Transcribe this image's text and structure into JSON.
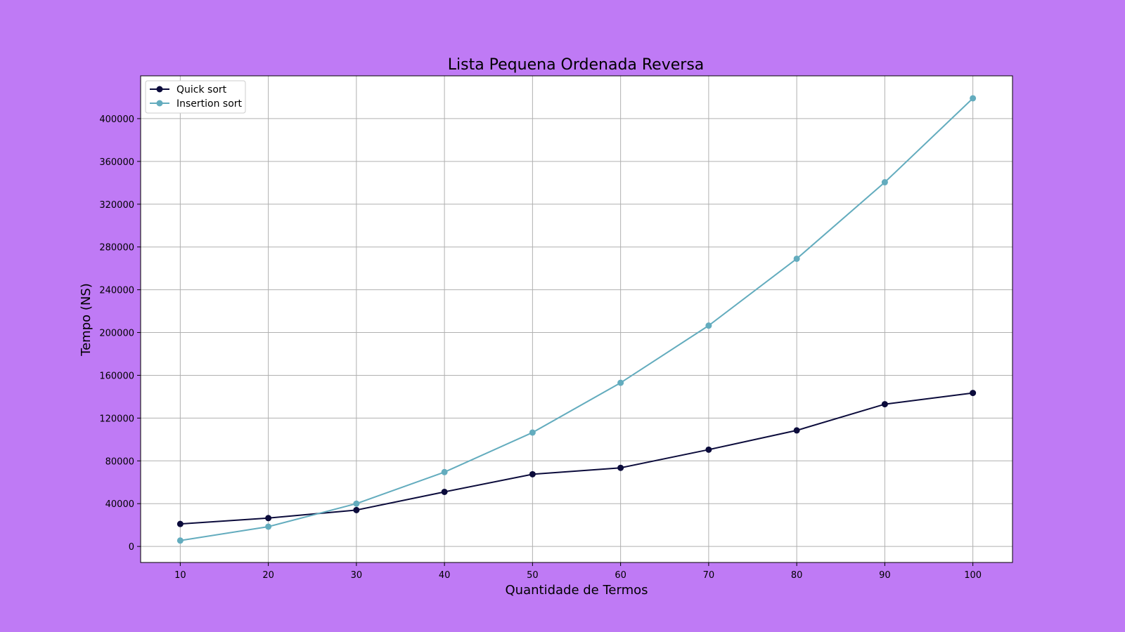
{
  "chart_data": {
    "type": "line",
    "title": "Lista Pequena Ordenada Reversa",
    "xlabel": "Quantidade de Termos",
    "ylabel": "Tempo (NS)",
    "x": [
      10,
      20,
      30,
      40,
      50,
      60,
      70,
      80,
      90,
      100
    ],
    "xlim": [
      5.5,
      104.5
    ],
    "ylim": [
      -15000,
      440000
    ],
    "xticks": [
      10,
      20,
      30,
      40,
      50,
      60,
      70,
      80,
      90,
      100
    ],
    "yticks": [
      0,
      40000,
      80000,
      120000,
      160000,
      200000,
      240000,
      280000,
      320000,
      360000,
      400000
    ],
    "grid": true,
    "legend_position": "top-left",
    "series": [
      {
        "name": "Quick sort",
        "color": "#0b0b3b",
        "values": [
          21000,
          26500,
          34000,
          51000,
          67500,
          73500,
          90500,
          108500,
          133000,
          143500
        ]
      },
      {
        "name": "Insertion sort",
        "color": "#63acbe",
        "values": [
          5500,
          18500,
          40000,
          69500,
          106500,
          153000,
          206500,
          269000,
          340500,
          419000
        ]
      }
    ]
  }
}
